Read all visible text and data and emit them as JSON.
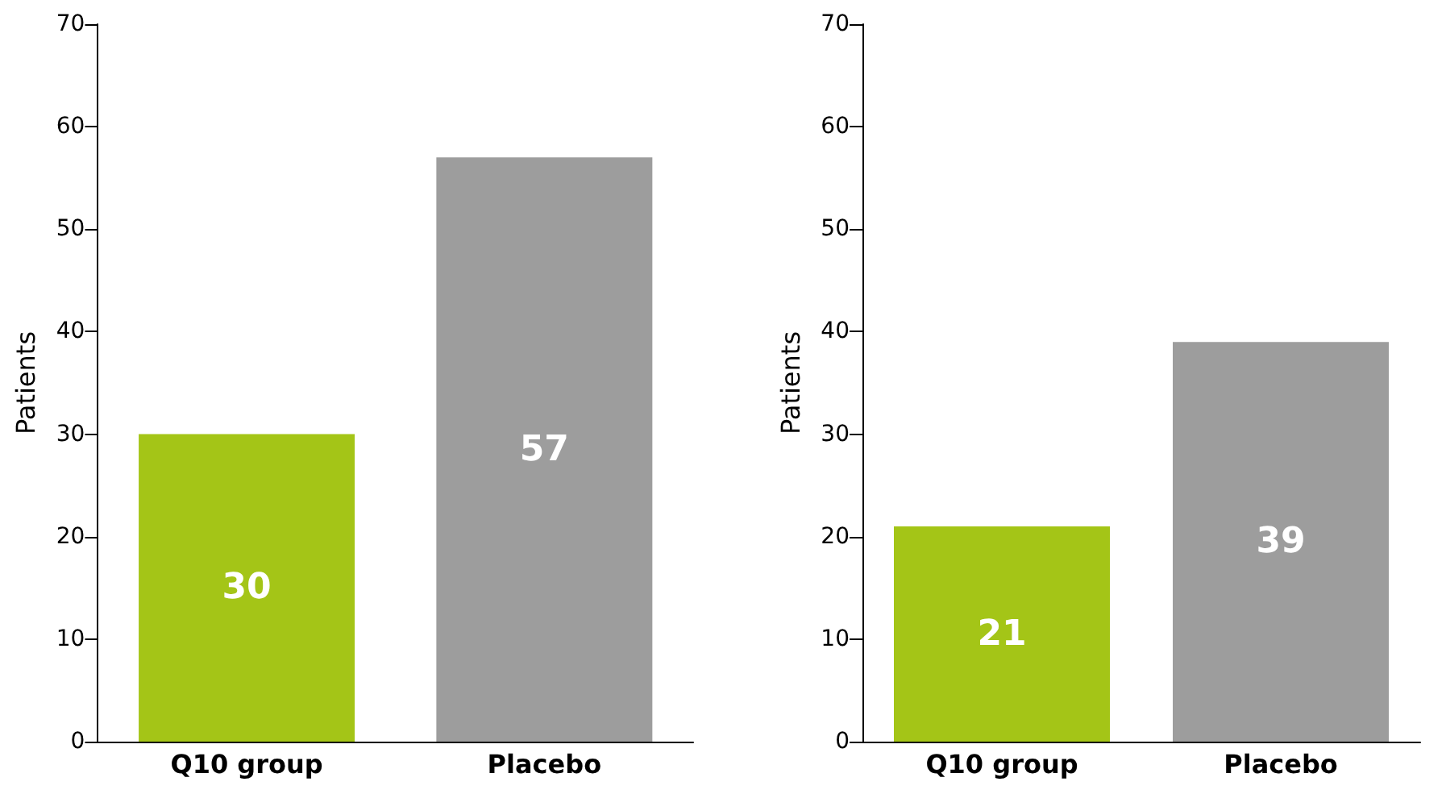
{
  "chart_data": [
    {
      "type": "bar",
      "ylabel": "Patients",
      "categories": [
        "Q10 group",
        "Placebo"
      ],
      "values": [
        30,
        57
      ],
      "colors": [
        "#a4c517",
        "#9d9d9d"
      ],
      "ylim": [
        0,
        70
      ],
      "yticks": [
        0,
        10,
        20,
        30,
        40,
        50,
        60,
        70
      ],
      "data_labels": true
    },
    {
      "type": "bar",
      "ylabel": "Patients",
      "categories": [
        "Q10 group",
        "Placebo"
      ],
      "values": [
        21,
        39
      ],
      "colors": [
        "#a4c517",
        "#9d9d9d"
      ],
      "ylim": [
        0,
        70
      ],
      "yticks": [
        0,
        10,
        20,
        30,
        40,
        50,
        60,
        70
      ],
      "data_labels": true
    }
  ]
}
